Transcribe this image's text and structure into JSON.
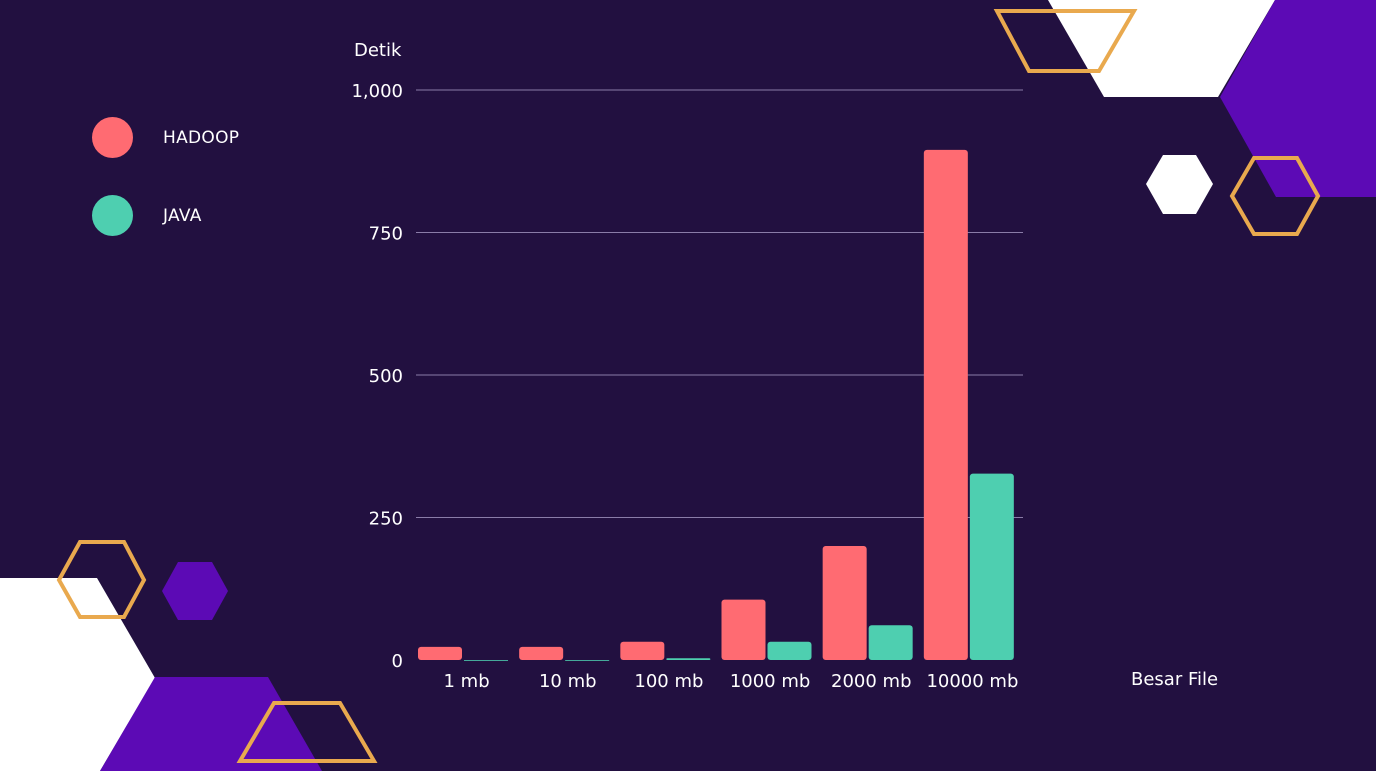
{
  "chart_data": {
    "type": "bar",
    "ylabel": "Detik",
    "xlabel": "Besar File",
    "categories": [
      "1 mb",
      "10 mb",
      "100 mb",
      "1000 mb",
      "2000 mb",
      "10000 mb"
    ],
    "series": [
      {
        "name": "HADOOP",
        "color": "#ff6b72",
        "values": [
          23,
          23,
          32,
          106,
          200,
          895
        ]
      },
      {
        "name": "JAVA",
        "color": "#4ecfb0",
        "values": [
          0,
          0,
          3,
          32,
          61,
          327
        ]
      }
    ],
    "yticks": [
      "0",
      "250",
      "500",
      "750",
      "1,000"
    ],
    "ytick_values": [
      0,
      250,
      500,
      750,
      1000
    ],
    "ylim": [
      0,
      1000
    ],
    "grid": true,
    "legend_position": "top-left"
  },
  "colors": {
    "background": "#221040",
    "accent_purple": "#5c0ab5",
    "accent_orange": "#e9a94e",
    "white": "#ffffff"
  }
}
